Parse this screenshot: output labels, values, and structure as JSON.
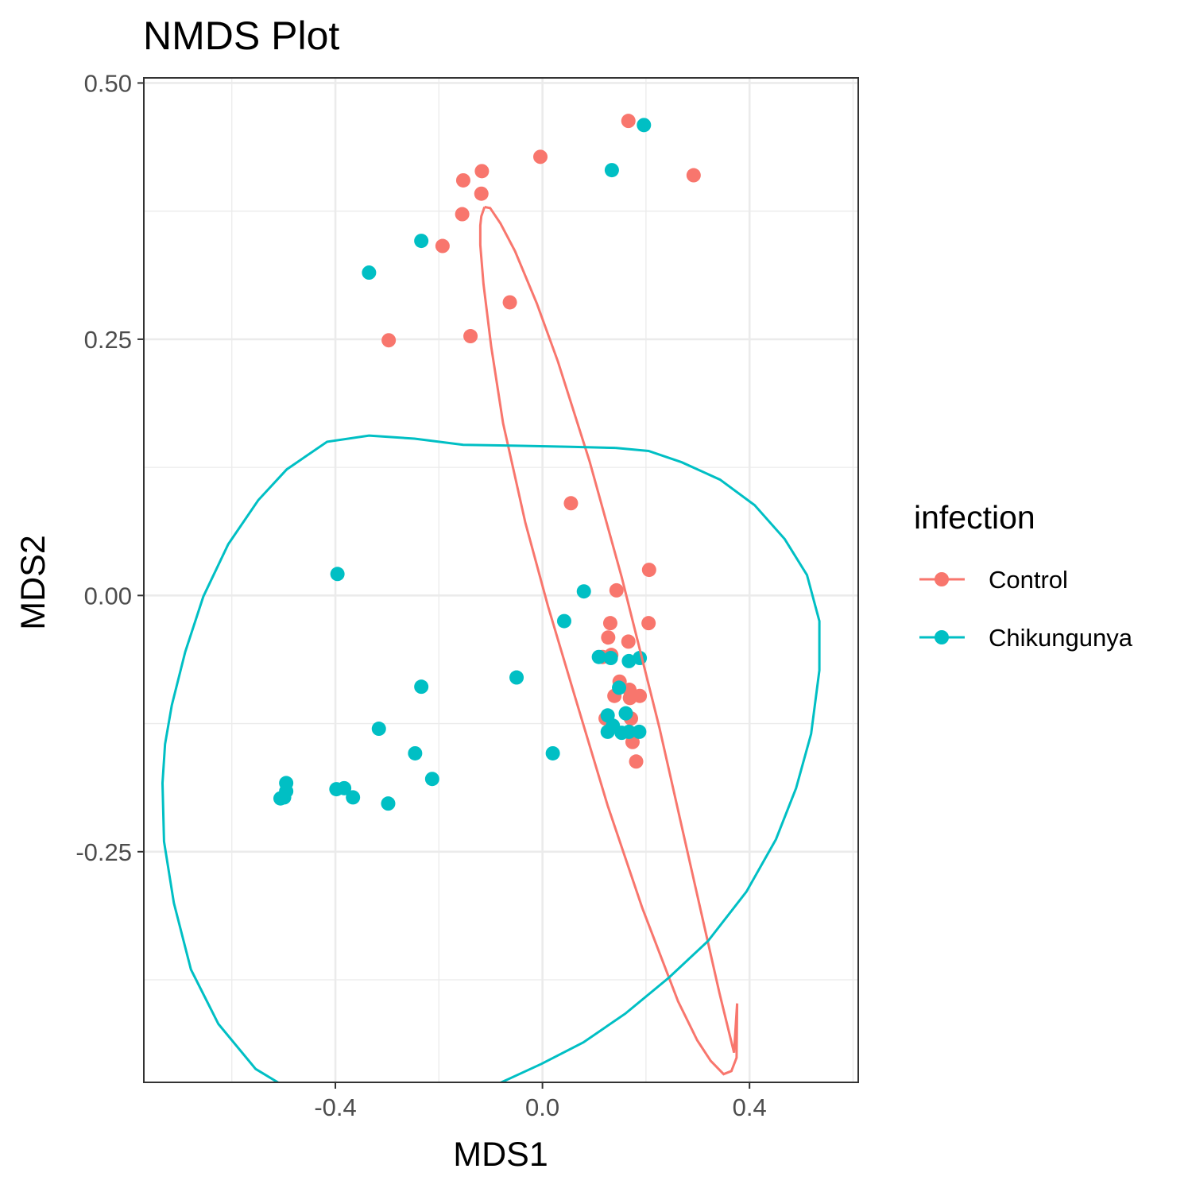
{
  "chart_data": {
    "type": "scatter",
    "title": "NMDS Plot",
    "xlabel": "MDS1",
    "ylabel": "MDS2",
    "xlim": [
      -0.77,
      0.61
    ],
    "ylim": [
      -0.475,
      0.505
    ],
    "x_ticks": [
      {
        "value": -0.4,
        "label": "-0.4"
      },
      {
        "value": 0.0,
        "label": "0.0"
      },
      {
        "value": 0.4,
        "label": "0.4"
      }
    ],
    "y_ticks": [
      {
        "value": 0.5,
        "label": "0.50"
      },
      {
        "value": 0.25,
        "label": "0.25"
      },
      {
        "value": 0.0,
        "label": "0.00"
      },
      {
        "value": -0.25,
        "label": "-0.25"
      }
    ],
    "grid": true,
    "legend": {
      "title": "infection",
      "position": "right"
    },
    "series": [
      {
        "name": "Control",
        "color": "#F8766D",
        "points": [
          [
            0.166,
            0.463
          ],
          [
            -0.004,
            0.428
          ],
          [
            0.292,
            0.41
          ],
          [
            -0.117,
            0.414
          ],
          [
            -0.153,
            0.405
          ],
          [
            -0.118,
            0.392
          ],
          [
            -0.155,
            0.372
          ],
          [
            -0.193,
            0.341
          ],
          [
            -0.063,
            0.286
          ],
          [
            -0.297,
            0.249
          ],
          [
            -0.139,
            0.253
          ],
          [
            0.055,
            0.09
          ],
          [
            0.206,
            0.025
          ],
          [
            0.143,
            0.005
          ],
          [
            0.131,
            -0.027
          ],
          [
            0.205,
            -0.027
          ],
          [
            0.127,
            -0.041
          ],
          [
            0.166,
            -0.045
          ],
          [
            0.116,
            -0.06
          ],
          [
            0.133,
            -0.058
          ],
          [
            0.149,
            -0.084
          ],
          [
            0.168,
            -0.092
          ],
          [
            0.139,
            -0.098
          ],
          [
            0.169,
            -0.1
          ],
          [
            0.188,
            -0.098
          ],
          [
            0.171,
            -0.12
          ],
          [
            0.122,
            -0.12
          ],
          [
            0.174,
            -0.143
          ],
          [
            0.181,
            -0.162
          ]
        ]
      },
      {
        "name": "Chikungunya",
        "color": "#00BFC4",
        "points": [
          [
            0.196,
            0.459
          ],
          [
            0.134,
            0.415
          ],
          [
            -0.234,
            0.346
          ],
          [
            -0.335,
            0.315
          ],
          [
            -0.396,
            0.021
          ],
          [
            0.08,
            0.004
          ],
          [
            0.042,
            -0.025
          ],
          [
            0.109,
            -0.06
          ],
          [
            0.132,
            -0.061
          ],
          [
            0.167,
            -0.064
          ],
          [
            0.188,
            -0.061
          ],
          [
            -0.05,
            -0.08
          ],
          [
            -0.234,
            -0.089
          ],
          [
            0.148,
            -0.09
          ],
          [
            0.126,
            -0.117
          ],
          [
            0.161,
            -0.115
          ],
          [
            0.136,
            -0.127
          ],
          [
            0.126,
            -0.133
          ],
          [
            0.153,
            -0.134
          ],
          [
            0.167,
            -0.133
          ],
          [
            0.187,
            -0.133
          ],
          [
            -0.316,
            -0.13
          ],
          [
            -0.246,
            -0.154
          ],
          [
            0.02,
            -0.154
          ],
          [
            -0.213,
            -0.179
          ],
          [
            -0.495,
            -0.183
          ],
          [
            -0.495,
            -0.191
          ],
          [
            -0.499,
            -0.197
          ],
          [
            -0.506,
            -0.198
          ],
          [
            -0.383,
            -0.188
          ],
          [
            -0.398,
            -0.189
          ],
          [
            -0.366,
            -0.197
          ],
          [
            -0.298,
            -0.203
          ]
        ]
      }
    ],
    "ellipses": [
      {
        "series": "Control",
        "color": "#F8766D",
        "points": [
          [
            -0.112,
            0.379
          ],
          [
            -0.101,
            0.378
          ],
          [
            -0.081,
            0.363
          ],
          [
            -0.053,
            0.336
          ],
          [
            -0.011,
            0.285
          ],
          [
            0.03,
            0.228
          ],
          [
            0.091,
            0.131
          ],
          [
            0.153,
            0.018
          ],
          [
            0.226,
            -0.129
          ],
          [
            0.29,
            -0.272
          ],
          [
            0.342,
            -0.388
          ],
          [
            0.37,
            -0.446
          ],
          [
            0.376,
            -0.398
          ],
          [
            0.375,
            -0.451
          ],
          [
            0.365,
            -0.464
          ],
          [
            0.35,
            -0.467
          ],
          [
            0.325,
            -0.454
          ],
          [
            0.299,
            -0.434
          ],
          [
            0.262,
            -0.396
          ],
          [
            0.193,
            -0.305
          ],
          [
            0.126,
            -0.205
          ],
          [
            0.06,
            -0.094
          ],
          [
            0.011,
            -0.011
          ],
          [
            -0.033,
            0.071
          ],
          [
            -0.076,
            0.168
          ],
          [
            -0.099,
            0.243
          ],
          [
            -0.114,
            0.304
          ],
          [
            -0.12,
            0.342
          ],
          [
            -0.12,
            0.361
          ],
          [
            -0.118,
            0.37
          ],
          [
            -0.112,
            0.379
          ]
        ]
      },
      {
        "series": "Chikungunya",
        "color": "#00BFC4",
        "points": [
          [
            0.141,
            0.144
          ],
          [
            0.205,
            0.141
          ],
          [
            0.269,
            0.13
          ],
          [
            0.343,
            0.113
          ],
          [
            0.41,
            0.088
          ],
          [
            0.468,
            0.055
          ],
          [
            0.511,
            0.02
          ],
          [
            0.535,
            -0.025
          ],
          [
            0.535,
            -0.073
          ],
          [
            0.519,
            -0.135
          ],
          [
            0.49,
            -0.188
          ],
          [
            0.451,
            -0.238
          ],
          [
            0.394,
            -0.289
          ],
          [
            0.32,
            -0.337
          ],
          [
            0.244,
            -0.373
          ],
          [
            0.16,
            -0.408
          ],
          [
            0.079,
            -0.436
          ],
          [
            -0.002,
            -0.457
          ],
          [
            -0.088,
            -0.477
          ],
          [
            -0.184,
            -0.495
          ],
          [
            -0.294,
            -0.505
          ],
          [
            -0.395,
            -0.502
          ],
          [
            -0.462,
            -0.49
          ],
          [
            -0.554,
            -0.462
          ],
          [
            -0.626,
            -0.418
          ],
          [
            -0.679,
            -0.365
          ],
          [
            -0.712,
            -0.3
          ],
          [
            -0.731,
            -0.24
          ],
          [
            -0.734,
            -0.183
          ],
          [
            -0.729,
            -0.145
          ],
          [
            -0.716,
            -0.107
          ],
          [
            -0.69,
            -0.055
          ],
          [
            -0.655,
            -0.001
          ],
          [
            -0.607,
            0.05
          ],
          [
            -0.549,
            0.093
          ],
          [
            -0.494,
            0.123
          ],
          [
            -0.416,
            0.15
          ],
          [
            -0.335,
            0.156
          ],
          [
            -0.247,
            0.153
          ],
          [
            -0.153,
            0.147
          ],
          [
            -0.041,
            0.146
          ],
          [
            0.054,
            0.145
          ],
          [
            0.141,
            0.144
          ]
        ]
      }
    ]
  }
}
